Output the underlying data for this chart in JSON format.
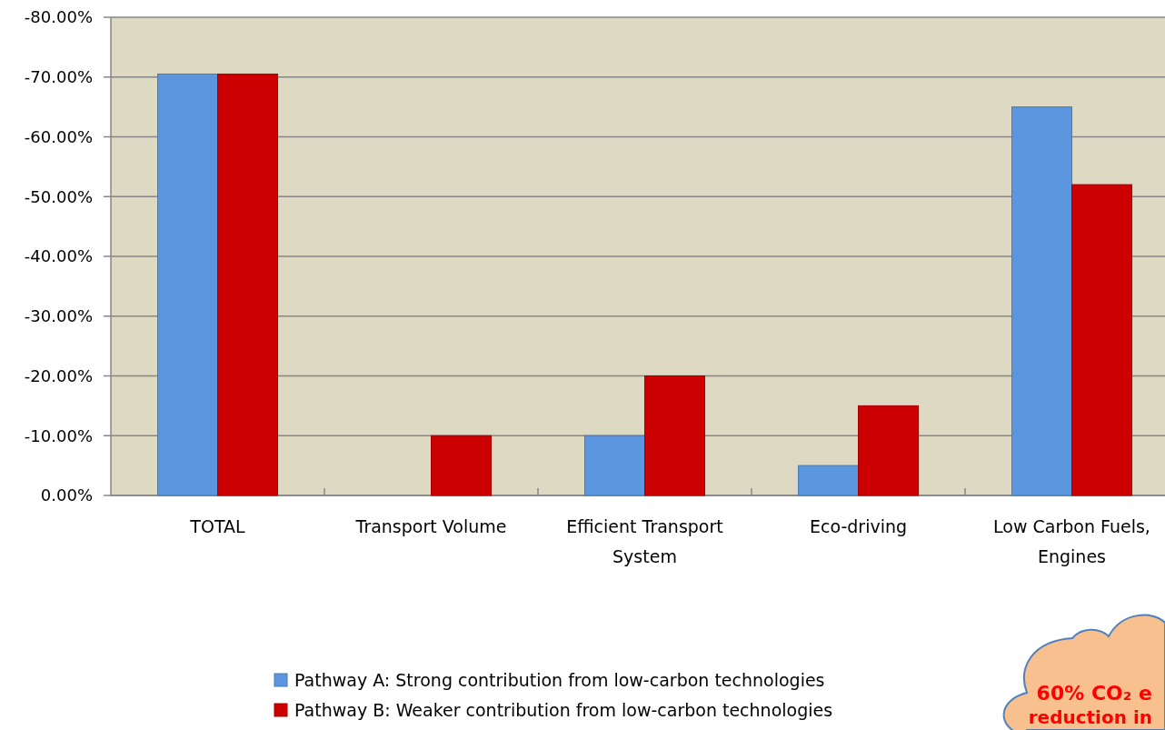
{
  "chart_data": {
    "type": "bar",
    "categories": [
      "TOTAL",
      "Transport Volume",
      "Efficient Transport System",
      "Eco-driving",
      "Low Carbon Fuels, Engines"
    ],
    "series": [
      {
        "name": "Pathway A: Strong contribution from low-carbon technologies",
        "color": "#5b96de",
        "values": [
          -70.5,
          0,
          -10,
          -5,
          -65
        ]
      },
      {
        "name": "Pathway B: Weaker contribution from low-carbon technologies",
        "color": "#cc0000",
        "values": [
          -70.5,
          -10,
          -20,
          -15,
          -52
        ]
      }
    ],
    "ylim": [
      0,
      -80
    ],
    "yticks": [
      {
        "value": 0,
        "label": "0.00%"
      },
      {
        "value": -10,
        "label": "-10.00%"
      },
      {
        "value": -20,
        "label": "-20.00%"
      },
      {
        "value": -30,
        "label": "-30.00%"
      },
      {
        "value": -40,
        "label": "-40.00%"
      },
      {
        "value": -50,
        "label": "-50.00%"
      },
      {
        "value": -60,
        "label": "-60.00%"
      },
      {
        "value": -70,
        "label": "-70.00%"
      },
      {
        "value": -80,
        "label": "-80.00%"
      }
    ],
    "grid": "y",
    "legend": "bottom",
    "annotations": [
      "60% CO₂ e",
      "reduction in"
    ]
  }
}
